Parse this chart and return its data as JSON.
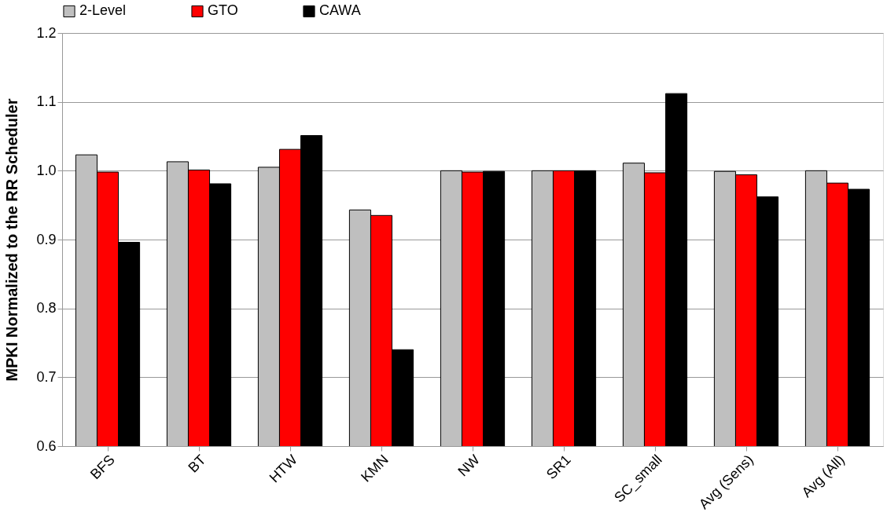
{
  "chart_data": {
    "type": "bar",
    "ylabel": "MPKI Normalized to the RR Scheduler",
    "categories": [
      "BFS",
      "BT",
      "HTW",
      "KMN",
      "NW",
      "SR1",
      "SC_small",
      "Avg (Sens)",
      "Avg (All)"
    ],
    "series": [
      {
        "name": "2-Level",
        "color": "#bfbfbf",
        "values": [
          1.023,
          1.013,
          1.005,
          0.943,
          1.0,
          1.0,
          1.011,
          0.999,
          1.0
        ]
      },
      {
        "name": "GTO",
        "color": "#ff0000",
        "values": [
          0.998,
          1.001,
          1.031,
          0.935,
          0.998,
          1.0,
          0.997,
          0.994,
          0.982
        ]
      },
      {
        "name": "CAWA",
        "color": "#000000",
        "values": [
          0.896,
          0.981,
          1.051,
          0.74,
          0.999,
          1.0,
          1.112,
          0.962,
          0.973
        ]
      }
    ],
    "ylim": [
      0.6,
      1.2
    ],
    "yticks": [
      0.6,
      0.7,
      0.8,
      0.9,
      {
        "value": 1,
        "label": "1.0"
      },
      1.1,
      1.2
    ],
    "grid": "y",
    "legend": "top"
  }
}
